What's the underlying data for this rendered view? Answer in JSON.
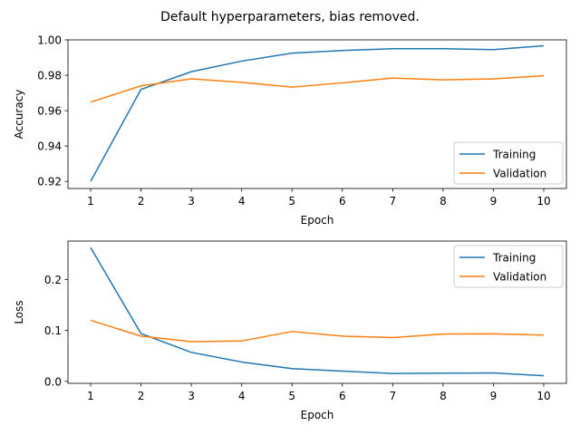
{
  "chart_data": {
    "title": "Default hyperparameters, bias removed.",
    "colors": {
      "Training": "#1f77b4",
      "Validation": "#ff7f0e"
    },
    "subplots": [
      {
        "type": "line",
        "xlabel": "Epoch",
        "ylabel": "Accuracy",
        "x": [
          1,
          2,
          3,
          4,
          5,
          6,
          7,
          8,
          9,
          10
        ],
        "xticks": [
          "1",
          "2",
          "3",
          "4",
          "5",
          "6",
          "7",
          "8",
          "9",
          "10"
        ],
        "ylim": [
          0.916,
          1.0
        ],
        "yticks": [
          0.92,
          0.94,
          0.96,
          0.98,
          1.0
        ],
        "ytick_labels": [
          "0.92",
          "0.94",
          "0.96",
          "0.98",
          "1.00"
        ],
        "legend": "lower-right",
        "series": [
          {
            "name": "Training",
            "values": [
              0.92,
              0.972,
              0.982,
              0.988,
              0.9925,
              0.994,
              0.995,
              0.995,
              0.9945,
              0.9967
            ]
          },
          {
            "name": "Validation",
            "values": [
              0.9648,
              0.974,
              0.978,
              0.976,
              0.9733,
              0.9757,
              0.9784,
              0.9774,
              0.978,
              0.9797
            ]
          }
        ]
      },
      {
        "type": "line",
        "xlabel": "Epoch",
        "ylabel": "Loss",
        "x": [
          1,
          2,
          3,
          4,
          5,
          6,
          7,
          8,
          9,
          10
        ],
        "xticks": [
          "1",
          "2",
          "3",
          "4",
          "5",
          "6",
          "7",
          "8",
          "9",
          "10"
        ],
        "ylim": [
          -0.004,
          0.276
        ],
        "yticks": [
          0.0,
          0.1,
          0.2
        ],
        "ytick_labels": [
          "0.0",
          "0.1",
          "0.2"
        ],
        "legend": "upper-right",
        "series": [
          {
            "name": "Training",
            "values": [
              0.263,
              0.094,
              0.057,
              0.038,
              0.025,
              0.02,
              0.0155,
              0.016,
              0.0165,
              0.011
            ]
          },
          {
            "name": "Validation",
            "values": [
              0.12,
              0.089,
              0.078,
              0.0795,
              0.098,
              0.089,
              0.086,
              0.093,
              0.0935,
              0.091
            ]
          }
        ]
      }
    ]
  }
}
